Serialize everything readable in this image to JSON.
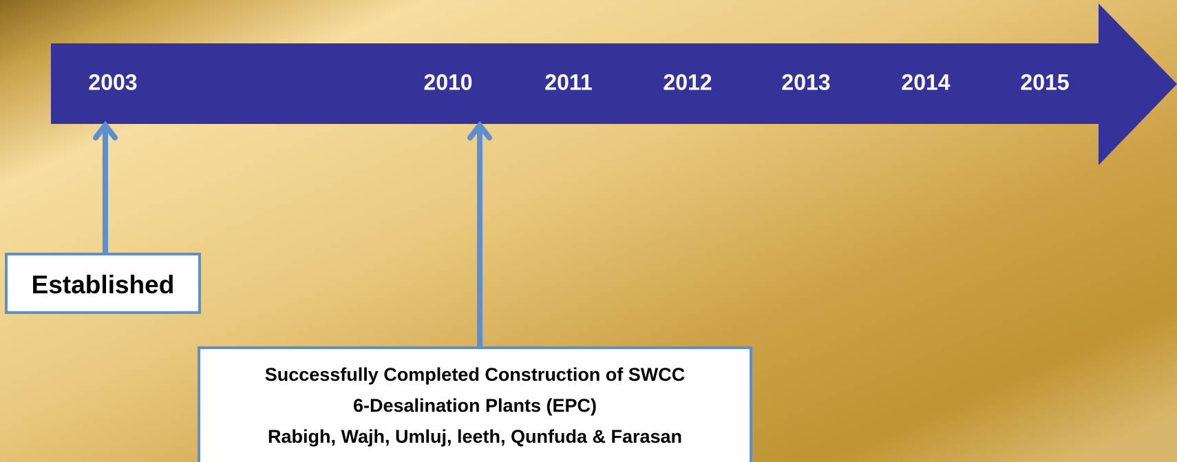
{
  "timeline": {
    "years": [
      "2003",
      "2010",
      "2011",
      "2012",
      "2013",
      "2014",
      "2015"
    ],
    "events": [
      {
        "lines": [
          "Established"
        ]
      },
      {
        "lines": [
          "Successfully Completed Construction of SWCC",
          "6-Desalination Plants (EPC)",
          "Rabigh, Wajh, Umluj, leeth, Qunfuda & Farasan"
        ]
      }
    ]
  }
}
